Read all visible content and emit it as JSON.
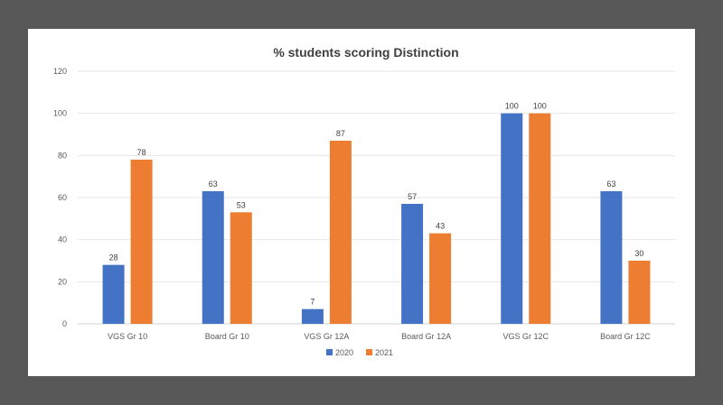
{
  "chart_data": {
    "type": "bar",
    "title": "% students scoring Distinction",
    "xlabel": "",
    "ylabel": "",
    "ylim": [
      0,
      120
    ],
    "yticks": [
      0,
      20,
      40,
      60,
      80,
      100,
      120
    ],
    "grid": true,
    "legend_position": "bottom",
    "categories": [
      "VGS Gr 10",
      "Board Gr 10",
      "VGS Gr 12A",
      "Board Gr 12A",
      "VGS Gr 12C",
      "Board Gr 12C"
    ],
    "series": [
      {
        "name": "2020",
        "color": "#4472C4",
        "values": [
          28,
          63,
          7,
          57,
          100,
          63
        ]
      },
      {
        "name": "2021",
        "color": "#ED7D31",
        "values": [
          78,
          53,
          87,
          43,
          100,
          30
        ]
      }
    ]
  }
}
